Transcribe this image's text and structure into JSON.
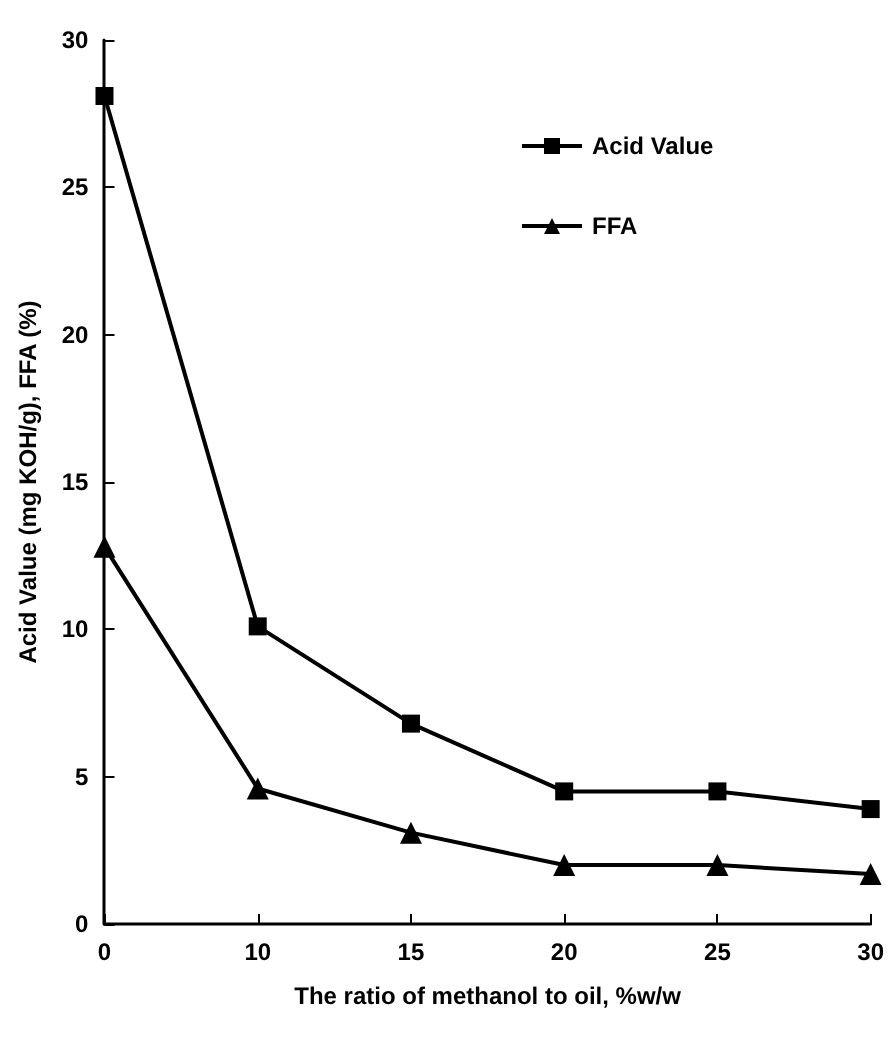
{
  "chart_data": {
    "type": "line",
    "xlabel": "The ratio of methanol to oil, %w/w",
    "ylabel": "Acid Value (mg KOH/g), FFA (%)",
    "categories": [
      "0",
      "10",
      "15",
      "20",
      "25",
      "30"
    ],
    "series": [
      {
        "name": "Acid Value",
        "color": "#000000",
        "marker": "square",
        "values": [
          28.1,
          10.1,
          6.8,
          4.5,
          4.5,
          3.9
        ]
      },
      {
        "name": "FFA",
        "color": "#000000",
        "marker": "triangle",
        "values": [
          12.8,
          4.6,
          3.1,
          2.0,
          2.0,
          1.7
        ]
      }
    ],
    "ylim": [
      0,
      30
    ],
    "yticks": [
      0,
      5,
      10,
      15,
      20,
      25,
      30
    ],
    "grid": false,
    "legend": "top right",
    "line_style": "solid"
  }
}
